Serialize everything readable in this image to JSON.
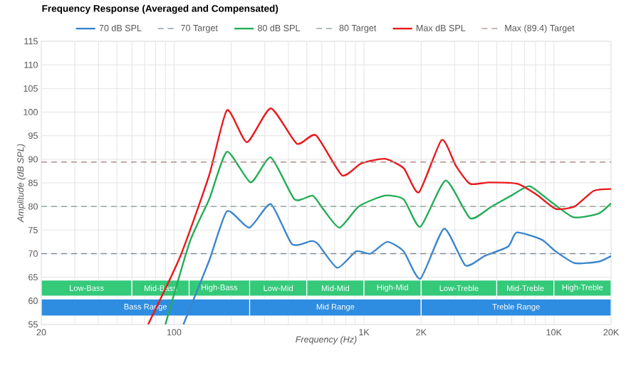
{
  "chart_data": {
    "type": "line",
    "title": "Frequency Response (Averaged and Compensated)",
    "xlabel": "Frequency (Hz)",
    "ylabel": "Amplitude (dB SPL)",
    "log": "x",
    "grid": true,
    "legend": "top",
    "xlim": [
      20,
      20000
    ],
    "ylim": [
      55,
      115
    ],
    "xticks": [
      20,
      {
        "value": 30,
        "label": null
      },
      {
        "value": 40,
        "label": null
      },
      {
        "value": 50,
        "label": null
      },
      {
        "value": 60,
        "label": null
      },
      {
        "value": 70,
        "label": null
      },
      {
        "value": 80,
        "label": null
      },
      {
        "value": 90,
        "label": null
      },
      100,
      {
        "value": 200,
        "label": null
      },
      {
        "value": 300,
        "label": null
      },
      {
        "value": 400,
        "label": null
      },
      {
        "value": 500,
        "label": null
      },
      {
        "value": 600,
        "label": null
      },
      {
        "value": 700,
        "label": null
      },
      {
        "value": 800,
        "label": null
      },
      {
        "value": 900,
        "label": null
      },
      {
        "value": 1000,
        "label": "1K"
      },
      {
        "value": 2000,
        "label": "2K"
      },
      {
        "value": 3000,
        "label": null
      },
      {
        "value": 4000,
        "label": null
      },
      {
        "value": 5000,
        "label": null
      },
      {
        "value": 6000,
        "label": null
      },
      {
        "value": 7000,
        "label": null
      },
      {
        "value": 8000,
        "label": null
      },
      {
        "value": 9000,
        "label": null
      },
      {
        "value": 10000,
        "label": "10K"
      },
      {
        "value": 20000,
        "label": "20K"
      }
    ],
    "yticks": [
      55,
      60,
      65,
      70,
      75,
      80,
      85,
      90,
      95,
      100,
      105,
      110,
      115
    ],
    "series": [
      {
        "name": "70 dB SPL",
        "line_style": "solid",
        "color": "#3a86cc",
        "x": [
          112,
          153,
          190,
          249,
          323,
          418,
          529,
          574,
          723,
          910,
          1082,
          1324,
          1618,
          1980,
          2640,
          3420,
          4310,
          5740,
          6370,
          8600,
          10200,
          12860,
          17150,
          20000
        ],
        "values": [
          55,
          68.5,
          79,
          75.5,
          80.5,
          72,
          72.7,
          72,
          67,
          70.5,
          70,
          72.5,
          70.5,
          64.7,
          75.3,
          67.5,
          69.5,
          71.5,
          74.5,
          73,
          70.5,
          68,
          68.3,
          69.5
        ]
      },
      {
        "name": "70 Target",
        "line_style": "dashed",
        "color": "#7f8c9c",
        "x": [
          20,
          20000
        ],
        "values": [
          70,
          70
        ]
      },
      {
        "name": "80 dB SPL",
        "line_style": "solid",
        "color": "#22ad55",
        "x": [
          90,
          121,
          153,
          190,
          253,
          323,
          431,
          536,
          608,
          743,
          937,
          1286,
          1618,
          1980,
          2690,
          3625,
          4700,
          6080,
          7450,
          9640,
          12700,
          17150,
          20000
        ],
        "values": [
          55,
          72.5,
          81.5,
          91.6,
          85.1,
          90.4,
          81.5,
          82.3,
          79.5,
          75.5,
          80,
          82.3,
          81.5,
          75.7,
          85.5,
          77.5,
          80,
          82.5,
          84.3,
          81,
          77.7,
          78.5,
          80.7
        ]
      },
      {
        "name": "80 Target",
        "line_style": "dashed",
        "color": "#7f9c8c",
        "x": [
          20,
          20000
        ],
        "values": [
          80,
          80
        ]
      },
      {
        "name": "Max dB SPL",
        "line_style": "solid",
        "color": "#e8191c",
        "x": [
          73,
          108,
          153,
          190,
          242,
          323,
          443,
          558,
          766,
          964,
          1286,
          1618,
          1946,
          2565,
          3048,
          3625,
          4560,
          6440,
          8115,
          10200,
          12860,
          16190,
          20000
        ],
        "values": [
          55,
          69.5,
          86.6,
          100.4,
          93.6,
          100.8,
          93.3,
          95.1,
          86.6,
          89.1,
          90.1,
          88.1,
          83,
          94.1,
          88.6,
          84.8,
          85.1,
          84.8,
          82.5,
          79.5,
          80,
          83.3,
          83.7
        ]
      },
      {
        "name": "Max (89.4) Target",
        "line_style": "dashed",
        "color": "#b08c8c",
        "x": [
          20,
          20000
        ],
        "values": [
          89.4,
          89.4
        ]
      }
    ],
    "bands": [
      {
        "axis": "x",
        "from": 20,
        "to": 60,
        "label": "Low-Bass",
        "color": "#35c97a"
      },
      {
        "axis": "x",
        "from": 60,
        "to": 120,
        "label": "Mid-Bass",
        "color": "#35c97a"
      },
      {
        "axis": "x",
        "from": 120,
        "to": 250,
        "label": "High-Bass",
        "color": "#35c97a"
      },
      {
        "axis": "x",
        "from": 250,
        "to": 500,
        "label": "Low-Mid",
        "color": "#35c97a"
      },
      {
        "axis": "x",
        "from": 500,
        "to": 1000,
        "label": "Mid-Mid",
        "color": "#35c97a"
      },
      {
        "axis": "x",
        "from": 1000,
        "to": 2000,
        "label": "High-Mid",
        "color": "#35c97a"
      },
      {
        "axis": "x",
        "from": 2000,
        "to": 5000,
        "label": "Low-Treble",
        "color": "#35c97a"
      },
      {
        "axis": "x",
        "from": 5000,
        "to": 10000,
        "label": "Mid-Treble",
        "color": "#35c97a"
      },
      {
        "axis": "x",
        "from": 10000,
        "to": 20000,
        "label": "High-Treble",
        "color": "#35c97a"
      },
      {
        "axis": "x",
        "from": 20,
        "to": 250,
        "label": "Bass Range",
        "color": "#2e8de0"
      },
      {
        "axis": "x",
        "from": 250,
        "to": 2000,
        "label": "Mid Range",
        "color": "#2e8de0"
      },
      {
        "axis": "x",
        "from": 2000,
        "to": 20000,
        "label": "Treble Range",
        "color": "#2e8de0"
      }
    ]
  }
}
